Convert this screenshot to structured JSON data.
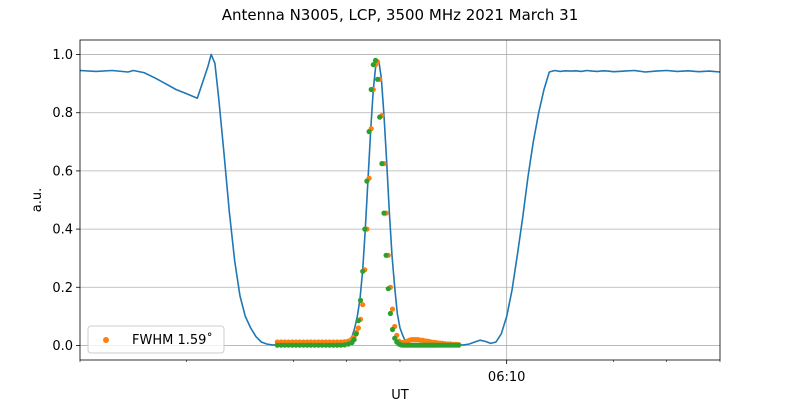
{
  "chart_data": {
    "type": "line",
    "title": "Antenna N3005, LCP, 3500 MHz 2021 March 31",
    "xlabel": "UT",
    "ylabel": "a.u.",
    "x_tick_labels": [
      "06:10"
    ],
    "ylim": [
      -0.05,
      1.05
    ],
    "yticks": [
      0.0,
      0.2,
      0.4,
      0.6,
      0.8,
      1.0
    ],
    "ytick_labels": [
      "0.0",
      "0.2",
      "0.4",
      "0.6",
      "0.8",
      "1.0"
    ],
    "grid": true,
    "legend_position": "lower-left",
    "legend_label": "FWHM 1.59$^\\circ$",
    "legend_display": "FWHM 1.59˚",
    "series": [
      {
        "color": "#1f77b4",
        "style": "line",
        "x": [
          0,
          3,
          6,
          9,
          10,
          12,
          14,
          16,
          18,
          20,
          22,
          24,
          24.6,
          25.3,
          26,
          27,
          28,
          29,
          30,
          31,
          32,
          33,
          34,
          35,
          36,
          37,
          38,
          39,
          40,
          41,
          42,
          43,
          44,
          45,
          46,
          47,
          48,
          49,
          50,
          51,
          51.5,
          52,
          52.5,
          53,
          53.5,
          54,
          54.5,
          55,
          55.5,
          56,
          56.5,
          57,
          57.5,
          58,
          58.5,
          59,
          59.5,
          60,
          60.5,
          61,
          61.5,
          62,
          62.5,
          63,
          63.5,
          64,
          64.5,
          65,
          65.5,
          66,
          67,
          68,
          69,
          70,
          71,
          72,
          73,
          74,
          75,
          76,
          77,
          78,
          79,
          80,
          81,
          82,
          83,
          84,
          85,
          86,
          87,
          88,
          89,
          90,
          91,
          92,
          93,
          94,
          95,
          96,
          97,
          98,
          99,
          100,
          101,
          102,
          104,
          106,
          108,
          110,
          112,
          114,
          116,
          118,
          120
        ],
        "y": [
          0.945,
          0.942,
          0.945,
          0.94,
          0.945,
          0.938,
          0.92,
          0.9,
          0.88,
          0.865,
          0.85,
          0.96,
          1.0,
          0.97,
          0.85,
          0.66,
          0.46,
          0.29,
          0.17,
          0.1,
          0.06,
          0.03,
          0.012,
          0.005,
          0.002,
          0.002,
          0.002,
          0.002,
          0.002,
          0.002,
          0.002,
          0.002,
          0.002,
          0.002,
          0.002,
          0.002,
          0.002,
          0.004,
          0.01,
          0.03,
          0.06,
          0.1,
          0.16,
          0.26,
          0.4,
          0.57,
          0.74,
          0.88,
          0.97,
          0.98,
          0.92,
          0.79,
          0.63,
          0.46,
          0.31,
          0.2,
          0.11,
          0.06,
          0.035,
          0.015,
          0.007,
          0.003,
          0.002,
          0.002,
          0.002,
          0.002,
          0.002,
          0.002,
          0.002,
          0.002,
          0.002,
          0.002,
          0.002,
          0.002,
          0.002,
          0.002,
          0.005,
          0.012,
          0.018,
          0.014,
          0.007,
          0.012,
          0.04,
          0.1,
          0.19,
          0.31,
          0.44,
          0.58,
          0.7,
          0.8,
          0.88,
          0.94,
          0.945,
          0.942,
          0.944,
          0.943,
          0.944,
          0.942,
          0.945,
          0.943,
          0.942,
          0.944,
          0.943,
          0.941,
          0.942,
          0.943,
          0.945,
          0.94,
          0.943,
          0.945,
          0.942,
          0.944,
          0.941,
          0.943,
          0.94
        ]
      },
      {
        "color": "#ff7f0e",
        "style": "markers",
        "x": [
          37,
          37.7,
          38.4,
          39.1,
          39.8,
          40.5,
          41.2,
          41.9,
          42.6,
          43.3,
          44,
          44.7,
          45.4,
          46.1,
          46.8,
          47.5,
          48.2,
          48.9,
          49.6,
          50.3,
          51,
          51.4,
          51.8,
          52.2,
          52.6,
          53,
          53.4,
          53.8,
          54.2,
          54.6,
          55,
          55.4,
          55.8,
          56.2,
          56.6,
          57,
          57.4,
          57.8,
          58.2,
          58.6,
          59,
          59.4,
          59.8,
          60.2,
          60.6,
          61,
          61.4,
          61.8,
          62.2,
          62.6,
          63,
          63.4,
          63.8,
          64.2,
          64.6,
          65,
          65.4,
          65.8,
          66.2,
          66.6,
          67,
          67.5,
          68,
          68.5,
          69,
          69.5,
          70,
          70.5,
          71
        ],
        "y": [
          0.012,
          0.012,
          0.012,
          0.012,
          0.012,
          0.012,
          0.012,
          0.012,
          0.012,
          0.012,
          0.012,
          0.012,
          0.012,
          0.012,
          0.012,
          0.012,
          0.012,
          0.012,
          0.013,
          0.015,
          0.02,
          0.03,
          0.045,
          0.06,
          0.09,
          0.14,
          0.26,
          0.4,
          0.575,
          0.745,
          0.88,
          0.965,
          0.975,
          0.915,
          0.79,
          0.625,
          0.455,
          0.31,
          0.2,
          0.125,
          0.065,
          0.035,
          0.015,
          0.01,
          0.01,
          0.012,
          0.015,
          0.018,
          0.02,
          0.02,
          0.02,
          0.02,
          0.018,
          0.018,
          0.016,
          0.015,
          0.014,
          0.012,
          0.011,
          0.01,
          0.009,
          0.008,
          0.007,
          0.006,
          0.005,
          0.005,
          0.004,
          0.004,
          0.003
        ]
      },
      {
        "color": "#2ca02c",
        "style": "markers",
        "x": [
          37,
          37.7,
          38.4,
          39.1,
          39.8,
          40.5,
          41.2,
          41.9,
          42.6,
          43.3,
          44,
          44.7,
          45.4,
          46.1,
          46.8,
          47.5,
          48.2,
          48.9,
          49.6,
          50.3,
          51,
          51.4,
          51.8,
          52.2,
          52.6,
          53,
          53.4,
          53.8,
          54.2,
          54.6,
          55,
          55.4,
          55.8,
          56.2,
          56.6,
          57,
          57.4,
          57.8,
          58.2,
          58.6,
          59,
          59.4,
          59.8,
          60.2,
          60.6,
          61,
          61.4,
          61.8,
          62.2,
          62.6,
          63,
          63.4,
          63.8,
          64.2,
          64.6,
          65,
          65.4,
          65.8,
          66.2,
          66.6,
          67,
          67.5,
          68,
          68.5,
          69,
          69.5,
          70,
          70.5,
          71
        ],
        "y": [
          0.001,
          0.001,
          0.001,
          0.001,
          0.001,
          0.001,
          0.001,
          0.001,
          0.001,
          0.001,
          0.001,
          0.001,
          0.001,
          0.001,
          0.001,
          0.001,
          0.001,
          0.001,
          0.002,
          0.005,
          0.01,
          0.02,
          0.04,
          0.085,
          0.155,
          0.255,
          0.4,
          0.565,
          0.735,
          0.88,
          0.965,
          0.98,
          0.915,
          0.785,
          0.625,
          0.455,
          0.31,
          0.195,
          0.11,
          0.055,
          0.025,
          0.012,
          0.005,
          0.002,
          0.001,
          0.001,
          0.001,
          0.001,
          0.001,
          0.001,
          0.001,
          0.001,
          0.001,
          0.001,
          0.001,
          0.001,
          0.001,
          0.001,
          0.001,
          0.001,
          0.001,
          0.001,
          0.001,
          0.001,
          0.001,
          0.001,
          0.001,
          0.001,
          0.001
        ]
      }
    ]
  }
}
